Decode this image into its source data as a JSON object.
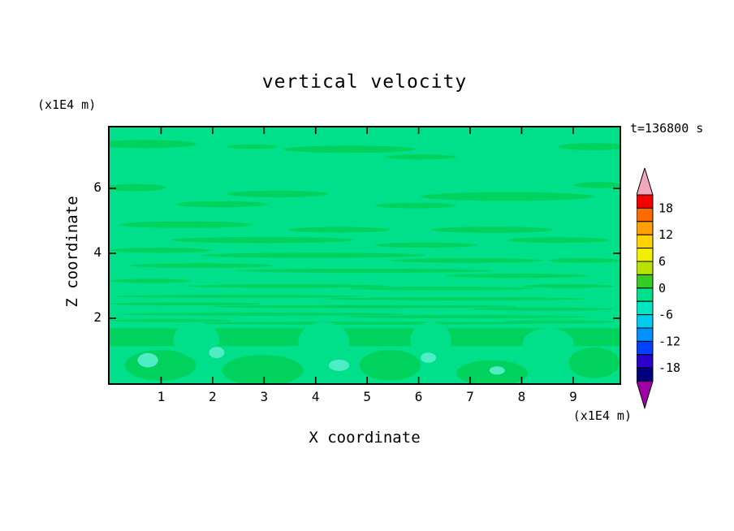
{
  "title": "vertical velocity",
  "timestamp": "t=136800 s",
  "x_axis": {
    "label": "X coordinate",
    "unit": "(x1E4 m)"
  },
  "y_axis": {
    "label": "Z coordinate",
    "unit": "(x1E4 m)"
  },
  "colorbar": {
    "labels": [
      "18",
      "12",
      "6",
      "0",
      "-6",
      "-12",
      "-18"
    ],
    "bands": [
      "#f40000",
      "#fb6b00",
      "#ffa000",
      "#ffd300",
      "#f2ef00",
      "#b8e300",
      "#35cc26",
      "#00e08a",
      "#00e6c3",
      "#00ccee",
      "#0092ff",
      "#0040ff",
      "#2a00cc",
      "#000080"
    ],
    "top_arrow_color": "#f2a6bd",
    "bottom_arrow_color": "#9f00a7"
  },
  "chart_data": {
    "type": "heatmap",
    "title": "vertical velocity",
    "xlabel": "X coordinate (x1E4 m)",
    "ylabel": "Z coordinate (x1E4 m)",
    "time_label": "t=136800 s",
    "xlim": [
      0,
      9.9
    ],
    "ylim": [
      0,
      7.875
    ],
    "xticks": [
      1,
      2,
      3,
      4,
      5,
      6,
      7,
      8,
      9
    ],
    "yticks": [
      2,
      4,
      6
    ],
    "colorbar_labels": [
      18,
      12,
      6,
      0,
      -6,
      -12,
      -18
    ],
    "levels": [
      -18,
      -15,
      -12,
      -9,
      -6,
      -3,
      0,
      3,
      6,
      9,
      12,
      15,
      18
    ],
    "legend_position": "right",
    "grid": false,
    "summary": "Filled-contour field of vertical velocity at t=136800 s. Field is dominated by the near-zero band (spring green). Thin horizontal streaks of the adjacent positive band occur between z=2 and z=6 (densest near z=2-3.5), a near-surface layer sits around z=1.5-2 broken by rising plumes of near-zero values, and a few small negative patches (pale cyan) appear below z=1.5.",
    "plot_colors": {
      "base": "#00e08a",
      "streak": "#00d25e",
      "patch": "#50ecc5"
    },
    "features": {
      "positive_streaks": [
        [
          0.07,
          0.065,
          0.1,
          0.016
        ],
        [
          0.28,
          0.075,
          0.05,
          0.009
        ],
        [
          0.47,
          0.085,
          0.13,
          0.014
        ],
        [
          0.61,
          0.115,
          0.07,
          0.01
        ],
        [
          0.95,
          0.075,
          0.07,
          0.014
        ],
        [
          0.05,
          0.235,
          0.06,
          0.014
        ],
        [
          0.96,
          0.225,
          0.05,
          0.012
        ],
        [
          0.33,
          0.26,
          0.1,
          0.013
        ],
        [
          0.22,
          0.3,
          0.09,
          0.012
        ],
        [
          0.78,
          0.27,
          0.17,
          0.017
        ],
        [
          0.6,
          0.305,
          0.08,
          0.011
        ],
        [
          0.15,
          0.38,
          0.13,
          0.013
        ],
        [
          0.45,
          0.4,
          0.1,
          0.011
        ],
        [
          0.75,
          0.4,
          0.12,
          0.012
        ],
        [
          0.3,
          0.44,
          0.18,
          0.012
        ],
        [
          0.62,
          0.46,
          0.1,
          0.01
        ],
        [
          0.88,
          0.44,
          0.1,
          0.011
        ],
        [
          0.1,
          0.48,
          0.1,
          0.01
        ],
        [
          0.4,
          0.5,
          0.22,
          0.01
        ],
        [
          0.7,
          0.52,
          0.15,
          0.009
        ],
        [
          0.93,
          0.52,
          0.07,
          0.009
        ],
        [
          0.18,
          0.54,
          0.14,
          0.009
        ],
        [
          0.5,
          0.56,
          0.25,
          0.008
        ],
        [
          0.8,
          0.58,
          0.14,
          0.008
        ],
        [
          0.08,
          0.6,
          0.08,
          0.008
        ],
        [
          0.35,
          0.62,
          0.2,
          0.007
        ],
        [
          0.65,
          0.63,
          0.18,
          0.007
        ],
        [
          0.9,
          0.62,
          0.09,
          0.007
        ],
        [
          0.25,
          0.66,
          0.24,
          0.006
        ],
        [
          0.68,
          0.67,
          0.26,
          0.006
        ],
        [
          0.15,
          0.69,
          0.15,
          0.006
        ],
        [
          0.5,
          0.7,
          0.3,
          0.006
        ],
        [
          0.85,
          0.71,
          0.14,
          0.006
        ],
        [
          0.3,
          0.73,
          0.28,
          0.006
        ],
        [
          0.7,
          0.74,
          0.24,
          0.006
        ],
        [
          0.12,
          0.755,
          0.12,
          0.006
        ],
        [
          0.5,
          0.765,
          0.35,
          0.006
        ],
        [
          0.88,
          0.76,
          0.11,
          0.006
        ]
      ],
      "surface_band": {
        "y": 0.785,
        "h": 0.07
      },
      "lower_blobs": [
        [
          0.1,
          0.93,
          0.07,
          0.06
        ],
        [
          0.3,
          0.95,
          0.08,
          0.06
        ],
        [
          0.55,
          0.93,
          0.06,
          0.06
        ],
        [
          0.75,
          0.96,
          0.07,
          0.05
        ],
        [
          0.95,
          0.92,
          0.05,
          0.06
        ]
      ],
      "plumes": [
        [
          0.17,
          0.83,
          0.045,
          0.07
        ],
        [
          0.42,
          0.84,
          0.05,
          0.08
        ],
        [
          0.63,
          0.83,
          0.04,
          0.07
        ],
        [
          0.86,
          0.845,
          0.05,
          0.06
        ]
      ],
      "negative_patches": [
        [
          0.075,
          0.91,
          0.02,
          0.028
        ],
        [
          0.21,
          0.88,
          0.015,
          0.022
        ],
        [
          0.45,
          0.93,
          0.02,
          0.022
        ],
        [
          0.625,
          0.9,
          0.015,
          0.02
        ],
        [
          0.76,
          0.95,
          0.015,
          0.016
        ]
      ]
    }
  }
}
